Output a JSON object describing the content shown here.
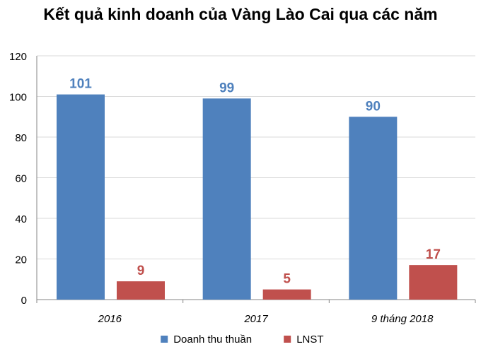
{
  "chart_data": {
    "type": "bar",
    "title": "Kết quả kinh doanh của Vàng Lào Cai qua các năm",
    "categories": [
      "2016",
      "2017",
      "9 tháng 2018"
    ],
    "series": [
      {
        "name": "Doanh thu thuần",
        "values": [
          101,
          99,
          90
        ],
        "color": "#4F81BD"
      },
      {
        "name": "LNST",
        "values": [
          9,
          5,
          17
        ],
        "color": "#C0504D"
      }
    ],
    "xlabel": "",
    "ylabel": "",
    "ylim": [
      0,
      120
    ],
    "yticks": [
      0,
      20,
      40,
      60,
      80,
      100,
      120
    ],
    "grid": true,
    "legend_position": "bottom",
    "data_labels": true,
    "colors": {
      "grid": "#D9D9D9",
      "axis": "#868686",
      "text": "#000000"
    }
  }
}
